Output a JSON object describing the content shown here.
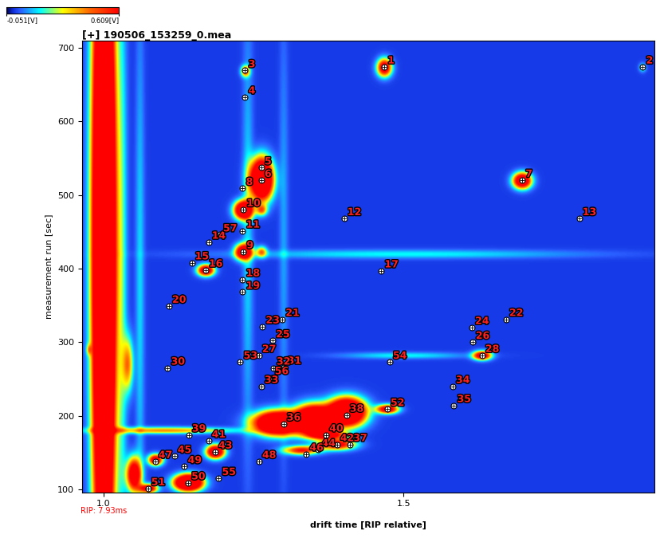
{
  "chart_data": {
    "type": "heatmap",
    "title": "[+] 190506_153259_0.mea",
    "xlabel": "drift time [RIP relative]",
    "ylabel": "measurement run [sec]",
    "xlim": [
      0.964,
      1.918
    ],
    "xticks": [
      {
        "value": 1.0,
        "label": "1.0"
      },
      {
        "value": 1.5,
        "label": "1.5"
      }
    ],
    "ylim": [
      96,
      710
    ],
    "yticks": [
      100,
      200,
      300,
      400,
      500,
      600,
      700
    ],
    "grid": false,
    "colorbar": {
      "range": [
        -0.051,
        0.609
      ],
      "ticks": [
        {
          "value": -0.051,
          "label": "-0.051[V]"
        },
        {
          "value": 0.609,
          "label": "0.609[V]"
        }
      ]
    },
    "annotations": [
      {
        "text": "RIP: 7.93ms",
        "x": 1.0
      }
    ],
    "spots": [
      {
        "x": 1.0,
        "y": 430,
        "amplitude": 2.0,
        "width_x": 0.012,
        "width_y": 300
      },
      {
        "x": 1.03,
        "y": 400,
        "amplitude": 0.15,
        "width_x": 0.006,
        "width_y": 300
      },
      {
        "x": 1.06,
        "y": 380,
        "amplitude": 0.12,
        "width_x": 0.005,
        "width_y": 250
      },
      {
        "x": 1.24,
        "y": 450,
        "amplitude": 0.12,
        "width_x": 0.006,
        "width_y": 200
      },
      {
        "x": 1.3,
        "y": 450,
        "amplitude": 0.08,
        "width_x": 0.005,
        "width_y": 200
      },
      {
        "x": 1.468,
        "y": 674,
        "amplitude": 0.8,
        "width_x": 0.008,
        "width_y": 8
      },
      {
        "x": 1.899,
        "y": 674,
        "amplitude": 0.2,
        "width_x": 0.004,
        "width_y": 4
      },
      {
        "x": 1.236,
        "y": 669,
        "amplitude": 0.5,
        "width_x": 0.005,
        "width_y": 5
      },
      {
        "x": 1.263,
        "y": 522,
        "amplitude": 1.5,
        "width_x": 0.012,
        "width_y": 18
      },
      {
        "x": 1.698,
        "y": 520,
        "amplitude": 1.0,
        "width_x": 0.01,
        "width_y": 7
      },
      {
        "x": 1.233,
        "y": 480,
        "amplitude": 1.2,
        "width_x": 0.01,
        "width_y": 8
      },
      {
        "x": 1.233,
        "y": 423,
        "amplitude": 1.0,
        "width_x": 0.009,
        "width_y": 7
      },
      {
        "x": 1.17,
        "y": 398,
        "amplitude": 0.9,
        "width_x": 0.009,
        "width_y": 5
      },
      {
        "x": 1.263,
        "y": 480,
        "amplitude": 0.4,
        "width_x": 0.006,
        "width_y": 5
      },
      {
        "x": 1.263,
        "y": 423,
        "amplitude": 0.4,
        "width_x": 0.006,
        "width_y": 5
      },
      {
        "x": 1.5,
        "y": 420,
        "amplitude": 0.15,
        "width_x": 0.2,
        "width_y": 4
      },
      {
        "x": 1.631,
        "y": 282,
        "amplitude": 0.8,
        "width_x": 0.01,
        "width_y": 4
      },
      {
        "x": 1.5,
        "y": 282,
        "amplitude": 0.15,
        "width_x": 0.07,
        "width_y": 3
      },
      {
        "x": 1.473,
        "y": 209,
        "amplitude": 0.8,
        "width_x": 0.012,
        "width_y": 4
      },
      {
        "x": 1.29,
        "y": 190,
        "amplitude": 1.5,
        "width_x": 0.025,
        "width_y": 10
      },
      {
        "x": 1.35,
        "y": 195,
        "amplitude": 1.5,
        "width_x": 0.02,
        "width_y": 12
      },
      {
        "x": 1.405,
        "y": 205,
        "amplitude": 1.5,
        "width_x": 0.02,
        "width_y": 12
      },
      {
        "x": 1.371,
        "y": 174,
        "amplitude": 0.8,
        "width_x": 0.02,
        "width_y": 4
      },
      {
        "x": 1.186,
        "y": 151,
        "amplitude": 1.0,
        "width_x": 0.01,
        "width_y": 6
      },
      {
        "x": 1.141,
        "y": 109,
        "amplitude": 1.5,
        "width_x": 0.015,
        "width_y": 7
      },
      {
        "x": 1.086,
        "y": 140,
        "amplitude": 0.8,
        "width_x": 0.008,
        "width_y": 5
      },
      {
        "x": 1.074,
        "y": 101,
        "amplitude": 0.8,
        "width_x": 0.01,
        "width_y": 4
      },
      {
        "x": 1.389,
        "y": 161,
        "amplitude": 0.7,
        "width_x": 0.02,
        "width_y": 5
      },
      {
        "x": 1.33,
        "y": 153,
        "amplitude": 0.6,
        "width_x": 0.02,
        "width_y": 4
      },
      {
        "x": 1.05,
        "y": 120,
        "amplitude": 0.9,
        "width_x": 0.008,
        "width_y": 15
      },
      {
        "x": 1.1,
        "y": 180,
        "amplitude": 0.4,
        "width_x": 0.08,
        "width_y": 3
      },
      {
        "x": 1.04,
        "y": 270,
        "amplitude": 0.4,
        "width_x": 0.006,
        "width_y": 25
      },
      {
        "x": 0.975,
        "y": 290,
        "amplitude": 0.25,
        "width_x": 0.003,
        "width_y": 5
      }
    ],
    "peaks": [
      {
        "label": "1",
        "x": 1.468,
        "y": 674
      },
      {
        "label": "2",
        "x": 1.899,
        "y": 674
      },
      {
        "label": "3",
        "x": 1.236,
        "y": 669
      },
      {
        "label": "4",
        "x": 1.236,
        "y": 633
      },
      {
        "label": "5",
        "x": 1.263,
        "y": 537
      },
      {
        "label": "6",
        "x": 1.263,
        "y": 520
      },
      {
        "label": "7",
        "x": 1.698,
        "y": 520
      },
      {
        "label": "8",
        "x": 1.232,
        "y": 509
      },
      {
        "label": "9",
        "x": 1.233,
        "y": 423
      },
      {
        "label": "10",
        "x": 1.233,
        "y": 480
      },
      {
        "label": "11",
        "x": 1.232,
        "y": 451
      },
      {
        "label": "12",
        "x": 1.401,
        "y": 468
      },
      {
        "label": "13",
        "x": 1.793,
        "y": 468
      },
      {
        "label": "14",
        "x": 1.175,
        "y": 436
      },
      {
        "label": "57",
        "x": 1.194,
        "y": 446
      },
      {
        "label": "15",
        "x": 1.147,
        "y": 408
      },
      {
        "label": "16",
        "x": 1.17,
        "y": 398
      },
      {
        "label": "17",
        "x": 1.463,
        "y": 397
      },
      {
        "label": "18",
        "x": 1.232,
        "y": 385
      },
      {
        "label": "19",
        "x": 1.232,
        "y": 368
      },
      {
        "label": "20",
        "x": 1.109,
        "y": 349
      },
      {
        "label": "21",
        "x": 1.298,
        "y": 331
      },
      {
        "label": "22",
        "x": 1.671,
        "y": 331
      },
      {
        "label": "23",
        "x": 1.265,
        "y": 321
      },
      {
        "label": "24",
        "x": 1.614,
        "y": 320
      },
      {
        "label": "25",
        "x": 1.282,
        "y": 302
      },
      {
        "label": "26",
        "x": 1.615,
        "y": 300
      },
      {
        "label": "53",
        "x": 1.228,
        "y": 273
      },
      {
        "label": "27",
        "x": 1.259,
        "y": 282
      },
      {
        "label": "28",
        "x": 1.631,
        "y": 282
      },
      {
        "label": "30",
        "x": 1.107,
        "y": 265
      },
      {
        "label": "31",
        "x": 1.301,
        "y": 266
      },
      {
        "label": "32",
        "x": 1.283,
        "y": 265
      },
      {
        "label": "56",
        "x": 1.28,
        "y": 252
      },
      {
        "label": "33",
        "x": 1.263,
        "y": 240
      },
      {
        "label": "34",
        "x": 1.582,
        "y": 240
      },
      {
        "label": "35",
        "x": 1.584,
        "y": 214
      },
      {
        "label": "38",
        "x": 1.405,
        "y": 201
      },
      {
        "label": "52",
        "x": 1.473,
        "y": 209
      },
      {
        "label": "54",
        "x": 1.477,
        "y": 273
      },
      {
        "label": "36",
        "x": 1.3,
        "y": 189
      },
      {
        "label": "39",
        "x": 1.142,
        "y": 174
      },
      {
        "label": "40",
        "x": 1.371,
        "y": 174
      },
      {
        "label": "41",
        "x": 1.175,
        "y": 166
      },
      {
        "label": "43",
        "x": 1.186,
        "y": 151
      },
      {
        "label": "37",
        "x": 1.411,
        "y": 161
      },
      {
        "label": "42",
        "x": 1.389,
        "y": 161
      },
      {
        "label": "44",
        "x": 1.358,
        "y": 154
      },
      {
        "label": "46",
        "x": 1.338,
        "y": 148
      },
      {
        "label": "47",
        "x": 1.086,
        "y": 138
      },
      {
        "label": "45",
        "x": 1.118,
        "y": 145
      },
      {
        "label": "48",
        "x": 1.259,
        "y": 138
      },
      {
        "label": "49",
        "x": 1.135,
        "y": 131
      },
      {
        "label": "50",
        "x": 1.141,
        "y": 109
      },
      {
        "label": "55",
        "x": 1.192,
        "y": 115
      },
      {
        "label": "51",
        "x": 1.074,
        "y": 101
      }
    ]
  }
}
